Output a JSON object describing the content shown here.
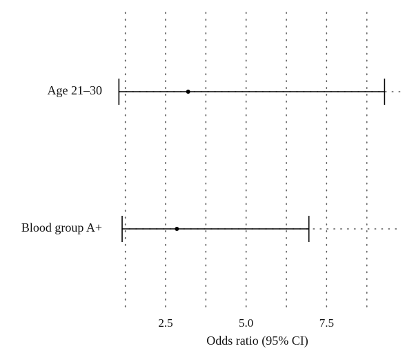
{
  "chart_data": {
    "type": "forest",
    "xlabel": "Odds ratio (95% CI)",
    "xticks": [
      {
        "value": 2.5,
        "label": "2.5"
      },
      {
        "value": 5.0,
        "label": "5.0"
      },
      {
        "value": 7.5,
        "label": "7.5"
      }
    ],
    "xlim": [
      1.0,
      10.0
    ],
    "grid": true,
    "rows": [
      {
        "label": "Age 21–30",
        "estimate": 3.2,
        "lower": 1.05,
        "upper": 9.3
      },
      {
        "label": "Blood group A+",
        "estimate": 2.85,
        "lower": 1.15,
        "upper": 6.95
      }
    ]
  }
}
